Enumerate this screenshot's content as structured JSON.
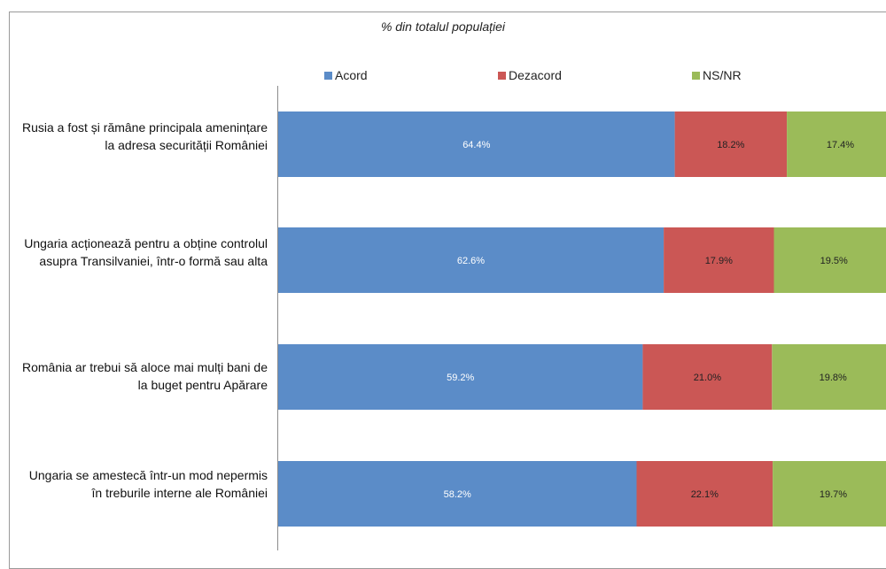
{
  "chart_data": {
    "type": "bar",
    "orientation": "horizontal",
    "stacked": true,
    "title": "% din totalul populației",
    "categories": [
      "Rusia a fost și rămâne principala amenințare la adresa securității României",
      "Ungaria acționează pentru a obține controlul asupra Transilvaniei, într-o formă sau alta",
      "România ar trebui să aloce mai mulți bani de la buget pentru Apărare",
      "Ungaria se amestecă într-un mod nepermis în treburile interne ale României"
    ],
    "series": [
      {
        "name": "Acord",
        "color": "#5b8cc8",
        "values": [
          64.4,
          62.6,
          59.2,
          58.2
        ],
        "labels": [
          "64.4%",
          "62.6%",
          "59.2%",
          "58.2%"
        ]
      },
      {
        "name": "Dezacord",
        "color": "#cb5755",
        "values": [
          18.2,
          17.9,
          21.0,
          22.1
        ],
        "labels": [
          "18.2%",
          "17.9%",
          "21.0%",
          "22.1%"
        ]
      },
      {
        "name": "NS/NR",
        "color": "#9bbb59",
        "values": [
          17.4,
          19.5,
          19.8,
          19.7
        ],
        "labels": [
          "17.4%",
          "19.5%",
          "19.8%",
          "19.7%"
        ]
      }
    ],
    "xlim": [
      0,
      100
    ],
    "legend_position": "top",
    "grid": false
  }
}
